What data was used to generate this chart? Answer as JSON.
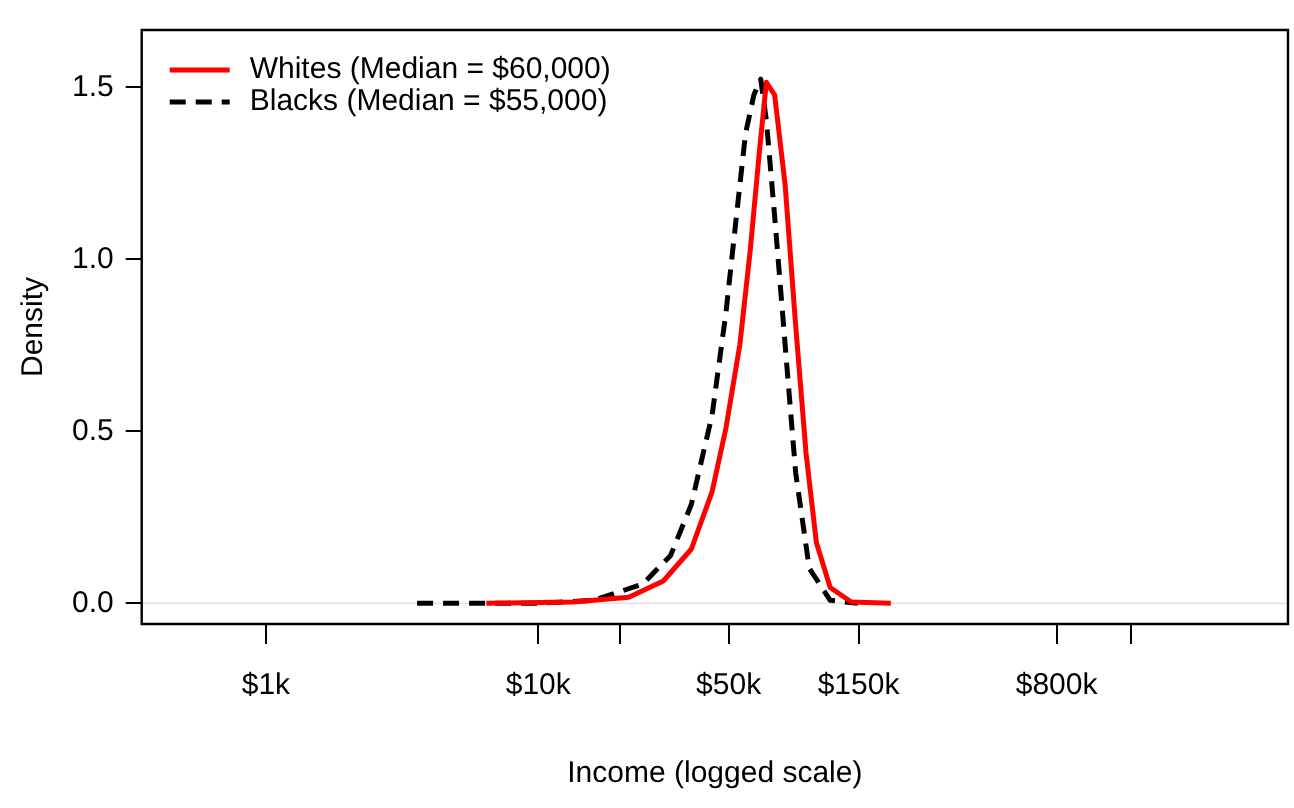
{
  "chart_data": {
    "type": "line",
    "xlabel": "Income (logged scale)",
    "ylabel": "Density",
    "log": "x",
    "xlim": [
      350,
      5660000
    ],
    "xticks": [
      {
        "value": 1000,
        "label": "$1k"
      },
      {
        "value": 10000,
        "label": "$10k"
      },
      {
        "value": 20000,
        "label": null
      },
      {
        "value": 50000,
        "label": "$50k"
      },
      {
        "value": 150000,
        "label": "$150k"
      },
      {
        "value": 800000,
        "label": "$800k"
      },
      {
        "value": 1500000,
        "label": null
      }
    ],
    "ylim": [
      -0.06,
      1.667
    ],
    "yticks": [
      {
        "value": 0,
        "label": "0.0"
      },
      {
        "value": 0.5,
        "label": "0.5"
      },
      {
        "value": 1,
        "label": "1.0"
      },
      {
        "value": 1.5,
        "label": "1.5"
      }
    ],
    "grid": false,
    "legend": "top left",
    "marker": "none",
    "ref_lines": [
      {
        "axis": "y",
        "value": 0,
        "color": "#e6e6e6"
      }
    ],
    "series": [
      {
        "name": "Whites (Median = $60,000)",
        "color": "#ff0000",
        "line_style": "solid",
        "x": [
          6450,
          13400,
          21500,
          28800,
          36500,
          43500,
          48900,
          55000,
          60100,
          64800,
          68800,
          73800,
          80600,
          88100,
          96200,
          105000,
          118000,
          141000,
          197000
        ],
        "values": [
          0,
          0.004,
          0.018,
          0.065,
          0.158,
          0.325,
          0.51,
          0.753,
          1.03,
          1.31,
          1.515,
          1.478,
          1.218,
          0.81,
          0.437,
          0.177,
          0.046,
          0.004,
          0
        ]
      },
      {
        "name": "Blacks (Median = $55,000)",
        "color": "#000000",
        "line_style": "dashed",
        "x": [
          3590,
          10000,
          16000,
          24200,
          30600,
          36500,
          43500,
          48900,
          53400,
          57700,
          61900,
          65600,
          68800,
          73800,
          80600,
          88100,
          98900,
          118000,
          149000
        ],
        "values": [
          0,
          0,
          0.009,
          0.056,
          0.139,
          0.288,
          0.548,
          0.846,
          1.125,
          1.366,
          1.478,
          1.524,
          1.404,
          1.125,
          0.753,
          0.381,
          0.102,
          0.009,
          0
        ]
      }
    ]
  }
}
